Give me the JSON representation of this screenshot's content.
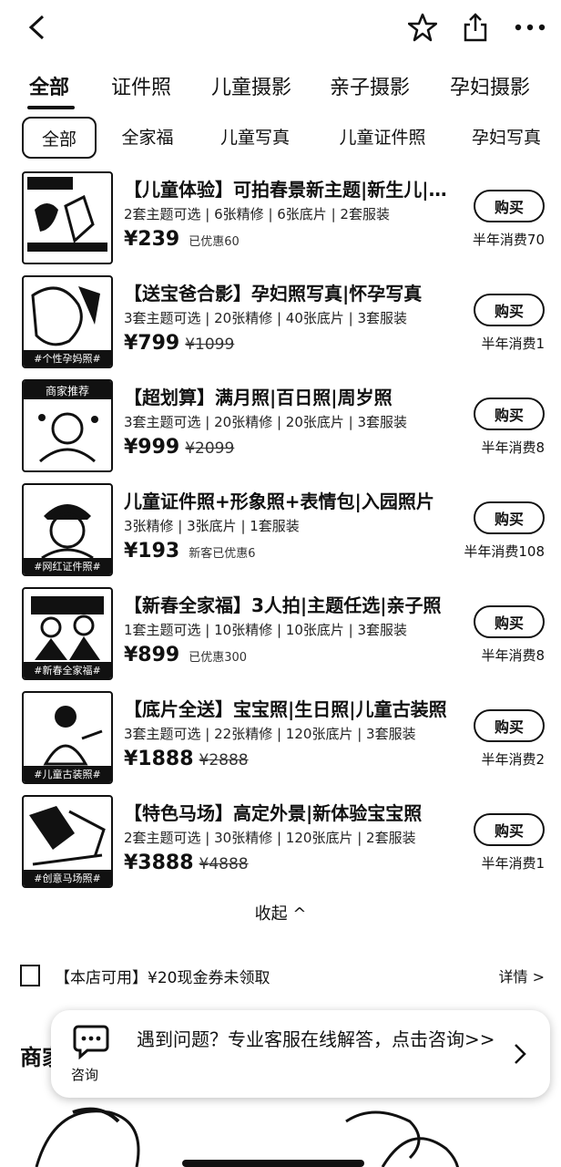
{
  "tabs": [
    "全部",
    "证件照",
    "儿童摄影",
    "亲子摄影",
    "孕妇摄影"
  ],
  "chips": [
    "全部",
    "全家福",
    "儿童写真",
    "儿童证件照",
    "孕妇写真"
  ],
  "items": [
    {
      "thumb_tag": "",
      "thumb_top": "",
      "title": "【儿童体验】可拍春景新主题|新生儿|周岁照",
      "specs": "2套主题可选 | 6张精修 | 6张底片 | 2套服装",
      "price": "¥239",
      "old_price": "",
      "discount": "已优惠60",
      "buy": "购买",
      "sales": "半年消费70"
    },
    {
      "thumb_tag": "#个性孕妈照#",
      "thumb_top": "",
      "title": "【送宝爸合影】孕妇照写真|怀孕写真",
      "specs": "3套主题可选 | 20张精修 | 40张底片 | 3套服装",
      "price": "¥799",
      "old_price": "¥1099",
      "discount": "",
      "buy": "购买",
      "sales": "半年消费1"
    },
    {
      "thumb_tag": "",
      "thumb_top": "商家推荐",
      "title": "【超划算】满月照|百日照|周岁照",
      "specs": "3套主题可选 | 20张精修 | 20张底片 | 3套服装",
      "price": "¥999",
      "old_price": "¥2099",
      "discount": "",
      "buy": "购买",
      "sales": "半年消费8"
    },
    {
      "thumb_tag": "#网红证件照#",
      "thumb_top": "",
      "title": "儿童证件照+形象照+表情包|入园照片",
      "specs": "3张精修 | 3张底片 | 1套服装",
      "price": "¥193",
      "old_price": "",
      "discount": "新客已优惠6",
      "buy": "购买",
      "sales": "半年消费108"
    },
    {
      "thumb_tag": "#新春全家福#",
      "thumb_top": "",
      "title": "【新春全家福】3人拍|主题任选|亲子照",
      "specs": "1套主题可选 | 10张精修 | 10张底片 | 3套服装",
      "price": "¥899",
      "old_price": "",
      "discount": "已优惠300",
      "buy": "购买",
      "sales": "半年消费8"
    },
    {
      "thumb_tag": "#儿童古装照#",
      "thumb_top": "",
      "title": "【底片全送】宝宝照|生日照|儿童古装照",
      "specs": "3套主题可选 | 22张精修 | 120张底片 | 3套服装",
      "price": "¥1888",
      "old_price": "¥2888",
      "discount": "",
      "buy": "购买",
      "sales": "半年消费2"
    },
    {
      "thumb_tag": "#创意马场照#",
      "thumb_top": "",
      "title": "【特色马场】高定外景|新体验宝宝照",
      "specs": "2套主题可选 | 30张精修 | 120张底片 | 2套服装",
      "price": "¥3888",
      "old_price": "¥4888",
      "discount": "",
      "buy": "购买",
      "sales": "半年消费1"
    }
  ],
  "collapse_label": "收起 ^",
  "coupon": {
    "text": "【本店可用】¥20现金券未领取",
    "detail": "详情 >"
  },
  "shop_title": "商家",
  "consult": {
    "label": "咨询",
    "text": "遇到问题？专业客服在线解答，点击咨询>>"
  }
}
